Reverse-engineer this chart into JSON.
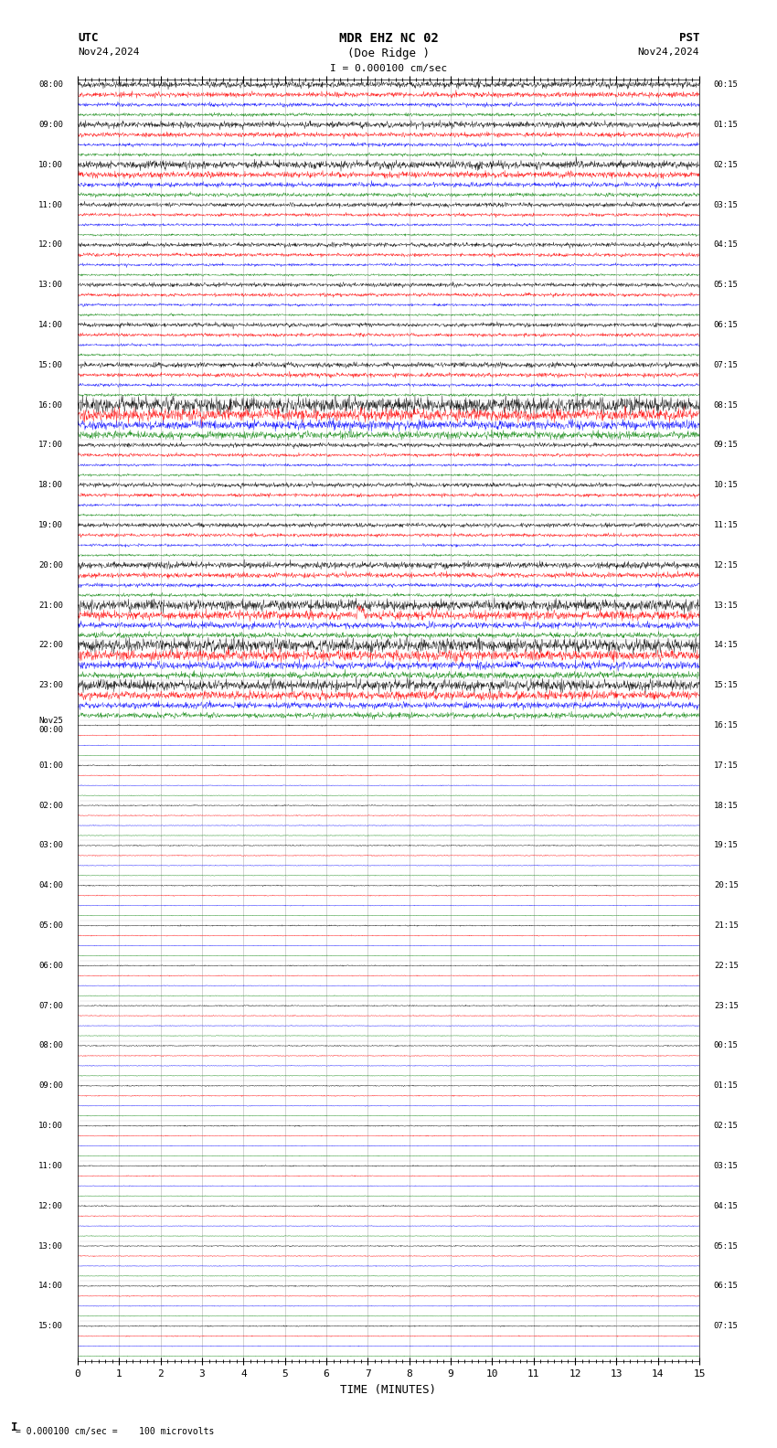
{
  "title_line1": "MDR EHZ NC 02",
  "title_line2": "(Doe Ridge )",
  "scale_label": "I = 0.000100 cm/sec",
  "utc_label": "UTC",
  "pst_label": "PST",
  "date_left": "Nov24,2024",
  "date_right": "Nov24,2024",
  "xlabel": "TIME (MINUTES)",
  "bottom_note": "= 0.000100 cm/sec =    100 microvolts",
  "xmin": 0,
  "xmax": 15,
  "trace_colors": [
    "black",
    "red",
    "blue",
    "green"
  ],
  "fig_width": 8.5,
  "fig_height": 15.84,
  "dpi": 100,
  "bg_color": "white",
  "num_rows": 32,
  "traces_per_row": 4,
  "noise_scale_black": 0.1,
  "noise_scale_red": 0.08,
  "noise_scale_blue": 0.06,
  "noise_scale_green": 0.05,
  "left_labels": [
    "08:00",
    "09:00",
    "10:00",
    "11:00",
    "12:00",
    "13:00",
    "14:00",
    "15:00",
    "16:00",
    "17:00",
    "18:00",
    "19:00",
    "20:00",
    "21:00",
    "22:00",
    "23:00",
    "Nov25\n00:00",
    "01:00",
    "02:00",
    "03:00",
    "04:00",
    "05:00",
    "06:00",
    "07:00",
    "08:00",
    "09:00",
    "10:00",
    "11:00",
    "12:00",
    "13:00",
    "14:00",
    "15:00"
  ],
  "right_labels": [
    "00:15",
    "01:15",
    "02:15",
    "03:15",
    "04:15",
    "05:15",
    "06:15",
    "07:15",
    "08:15",
    "09:15",
    "10:15",
    "11:15",
    "12:15",
    "13:15",
    "14:15",
    "15:15",
    "16:15",
    "17:15",
    "18:15",
    "19:15",
    "20:15",
    "21:15",
    "22:15",
    "23:15",
    "00:15",
    "01:15",
    "02:15",
    "03:15",
    "04:15",
    "05:15",
    "06:15",
    "07:15"
  ]
}
